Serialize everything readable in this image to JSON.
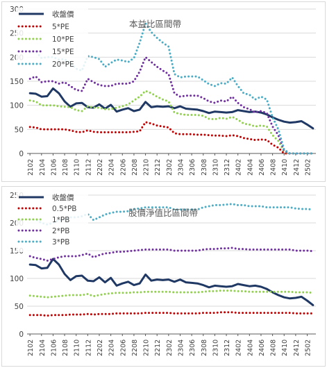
{
  "colors": {
    "close": "#1f3864",
    "s1": "#c00000",
    "s2": "#92d050",
    "s3": "#7030a0",
    "s4": "#4bacc6",
    "grid": "#d9d9d9",
    "axis": "#595959",
    "text": "#404040",
    "annotation": "#595959"
  },
  "chart_data": [
    {
      "type": "line",
      "annotation": "本益比區間帶",
      "ylim": [
        0,
        300
      ],
      "yticks": [
        0,
        50,
        100,
        150,
        200,
        250,
        300
      ],
      "grid": "horizontal",
      "legend_position": "top-left",
      "x": [
        "2102",
        "2103",
        "2104",
        "2105",
        "2106",
        "2107",
        "2108",
        "2109",
        "2110",
        "2111",
        "2112",
        "2201",
        "2202",
        "2203",
        "2204",
        "2205",
        "2206",
        "2207",
        "2208",
        "2209",
        "2210",
        "2211",
        "2212",
        "2301",
        "2302",
        "2303",
        "2304",
        "2305",
        "2306",
        "2307",
        "2308",
        "2309",
        "2310",
        "2311",
        "2312",
        "2401",
        "2402",
        "2403",
        "2404",
        "2405",
        "2406",
        "2407",
        "2408",
        "2409",
        "2410",
        "2411",
        "2412",
        "2501",
        "2502",
        "2503"
      ],
      "xticks": [
        "2102",
        "2104",
        "2106",
        "2108",
        "2110",
        "2112",
        "2202",
        "2204",
        "2206",
        "2208",
        "2210",
        "2212",
        "2302",
        "2304",
        "2306",
        "2308",
        "2310",
        "2312",
        "2402",
        "2404",
        "2406",
        "2408",
        "2410",
        "2412",
        "2502"
      ],
      "series": [
        {
          "name": "收盤價",
          "color_key": "close",
          "style": "solid",
          "values": [
            125,
            124,
            118,
            119,
            135,
            125,
            108,
            97,
            104,
            105,
            96,
            95,
            102,
            93,
            101,
            87,
            91,
            94,
            88,
            91,
            107,
            96,
            98,
            97,
            98,
            94,
            98,
            93,
            92,
            91,
            88,
            84,
            87,
            86,
            85,
            86,
            90,
            88,
            86,
            87,
            85,
            81,
            75,
            70,
            66,
            64,
            65,
            67,
            60,
            52
          ]
        },
        {
          "name": "5*PE",
          "color_key": "s1",
          "style": "dotted",
          "values": [
            55,
            54,
            50,
            50,
            50,
            50,
            50,
            48,
            45,
            44,
            48,
            45,
            44,
            44,
            44,
            44,
            44,
            44,
            45,
            46,
            65,
            62,
            58,
            56,
            54,
            42,
            40,
            40,
            40,
            39,
            39,
            38,
            37,
            37,
            36,
            38,
            36,
            32,
            30,
            28,
            29,
            28,
            18,
            12,
            0,
            0,
            0,
            0,
            0,
            0
          ]
        },
        {
          "name": "10*PE",
          "color_key": "s2",
          "style": "dotted",
          "values": [
            110,
            108,
            100,
            100,
            100,
            98,
            97,
            96,
            90,
            88,
            98,
            95,
            95,
            92,
            92,
            95,
            98,
            102,
            110,
            118,
            130,
            125,
            118,
            112,
            108,
            85,
            82,
            80,
            80,
            80,
            78,
            72,
            71,
            74,
            72,
            76,
            70,
            62,
            60,
            56,
            58,
            56,
            38,
            26,
            4,
            0,
            0,
            0,
            0,
            0
          ]
        },
        {
          "name": "15*PE",
          "color_key": "s3",
          "style": "dotted",
          "values": [
            155,
            160,
            148,
            150,
            150,
            145,
            148,
            140,
            132,
            130,
            155,
            148,
            142,
            140,
            140,
            145,
            145,
            145,
            150,
            170,
            200,
            190,
            180,
            172,
            165,
            125,
            118,
            120,
            120,
            120,
            115,
            108,
            105,
            110,
            108,
            118,
            105,
            96,
            92,
            85,
            88,
            84,
            56,
            38,
            6,
            0,
            0,
            0,
            0,
            0
          ]
        },
        {
          "name": "20*PE",
          "color_key": "s4",
          "style": "dotted",
          "values": [
            210,
            212,
            198,
            200,
            200,
            195,
            196,
            188,
            176,
            172,
            202,
            200,
            196,
            180,
            188,
            195,
            193,
            190,
            198,
            230,
            270,
            252,
            240,
            230,
            222,
            165,
            158,
            160,
            160,
            160,
            152,
            144,
            140,
            146,
            145,
            158,
            140,
            125,
            122,
            112,
            118,
            112,
            75,
            50,
            8,
            0,
            0,
            0,
            0,
            0
          ]
        }
      ]
    },
    {
      "type": "line",
      "annotation": "股價淨值比區間帶",
      "ylim": [
        0,
        250
      ],
      "yticks": [
        0,
        50,
        100,
        150,
        200,
        250
      ],
      "grid": "horizontal",
      "legend_position": "top-left",
      "x": [
        "2102",
        "2103",
        "2104",
        "2105",
        "2106",
        "2107",
        "2108",
        "2109",
        "2110",
        "2111",
        "2112",
        "2201",
        "2202",
        "2203",
        "2204",
        "2205",
        "2206",
        "2207",
        "2208",
        "2209",
        "2210",
        "2211",
        "2212",
        "2301",
        "2302",
        "2303",
        "2304",
        "2305",
        "2306",
        "2307",
        "2308",
        "2309",
        "2310",
        "2311",
        "2312",
        "2401",
        "2402",
        "2403",
        "2404",
        "2405",
        "2406",
        "2407",
        "2408",
        "2409",
        "2410",
        "2411",
        "2412",
        "2501",
        "2502",
        "2503"
      ],
      "xticks": [
        "2102",
        "2104",
        "2106",
        "2108",
        "2110",
        "2112",
        "2202",
        "2204",
        "2206",
        "2208",
        "2210",
        "2212",
        "2302",
        "2304",
        "2306",
        "2308",
        "2310",
        "2312",
        "2402",
        "2404",
        "2406",
        "2408",
        "2410",
        "2412",
        "2502"
      ],
      "series": [
        {
          "name": "收盤價",
          "color_key": "close",
          "style": "solid",
          "values": [
            125,
            124,
            118,
            119,
            135,
            125,
            108,
            97,
            104,
            105,
            96,
            95,
            102,
            93,
            101,
            87,
            91,
            94,
            88,
            91,
            107,
            96,
            98,
            97,
            98,
            94,
            98,
            93,
            92,
            91,
            88,
            84,
            87,
            86,
            85,
            86,
            90,
            88,
            86,
            87,
            85,
            81,
            75,
            70,
            66,
            64,
            65,
            67,
            60,
            52
          ]
        },
        {
          "name": "0.5*PB",
          "color_key": "s1",
          "style": "dotted",
          "values": [
            34,
            34,
            34,
            33,
            34,
            34,
            34,
            35,
            35,
            35,
            36,
            35,
            36,
            36,
            36,
            37,
            37,
            37,
            37,
            37,
            38,
            38,
            38,
            38,
            38,
            37,
            37,
            37,
            37,
            37,
            38,
            38,
            38,
            39,
            39,
            39,
            38,
            38,
            38,
            38,
            38,
            38,
            38,
            38,
            38,
            38,
            37,
            37,
            37,
            37
          ]
        },
        {
          "name": "1*PB",
          "color_key": "s2",
          "style": "dotted",
          "values": [
            69,
            68,
            67,
            66,
            67,
            68,
            69,
            70,
            70,
            70,
            72,
            68,
            70,
            72,
            73,
            74,
            74,
            74,
            75,
            75,
            76,
            76,
            76,
            76,
            76,
            75,
            75,
            75,
            75,
            75,
            76,
            77,
            77,
            78,
            78,
            78,
            77,
            77,
            76,
            76,
            76,
            76,
            76,
            76,
            76,
            76,
            75,
            75,
            75,
            74
          ]
        },
        {
          "name": "2*PB",
          "color_key": "s3",
          "style": "dotted",
          "values": [
            140,
            137,
            135,
            132,
            135,
            138,
            140,
            140,
            140,
            142,
            145,
            138,
            142,
            145,
            146,
            148,
            148,
            149,
            150,
            151,
            152,
            152,
            152,
            152,
            152,
            150,
            150,
            150,
            150,
            150,
            152,
            153,
            153,
            154,
            154,
            155,
            153,
            153,
            152,
            152,
            152,
            152,
            152,
            152,
            152,
            152,
            150,
            150,
            150,
            149
          ]
        },
        {
          "name": "3*PB",
          "color_key": "s4",
          "style": "dotted",
          "values": [
            206,
            206,
            200,
            197,
            200,
            205,
            207,
            210,
            210,
            212,
            216,
            205,
            210,
            215,
            218,
            220,
            220,
            221,
            225,
            226,
            228,
            228,
            228,
            228,
            228,
            224,
            224,
            224,
            224,
            224,
            228,
            230,
            232,
            232,
            233,
            234,
            232,
            232,
            230,
            230,
            230,
            228,
            228,
            228,
            228,
            228,
            226,
            225,
            225,
            224
          ]
        }
      ]
    }
  ]
}
